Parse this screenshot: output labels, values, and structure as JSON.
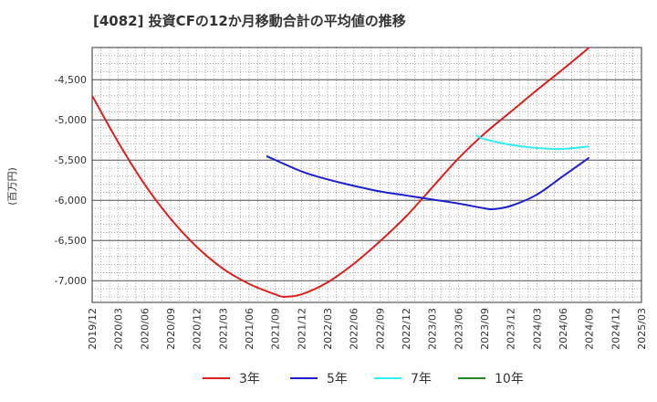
{
  "title": "[4082]  投資CFの12か月移動合計の平均値の推移",
  "chart_data": {
    "type": "line",
    "ylabel": "(百万円)",
    "ylim": [
      -7270,
      -4100
    ],
    "y_ticks": [
      -4500,
      -5000,
      -5500,
      -6000,
      -6500,
      -7000
    ],
    "y_tick_labels": [
      "-4,500",
      "-5,000",
      "-5,500",
      "-6,000",
      "-6,500",
      "-7,000"
    ],
    "x_ticks": [
      "2019/12",
      "2020/03",
      "2020/06",
      "2020/09",
      "2020/12",
      "2021/03",
      "2021/06",
      "2021/09",
      "2021/12",
      "2022/03",
      "2022/06",
      "2022/09",
      "2022/12",
      "2023/03",
      "2023/06",
      "2023/09",
      "2023/12",
      "2024/03",
      "2024/06",
      "2024/09",
      "2024/12",
      "2025/03"
    ],
    "grid": true,
    "legend_position": "bottom",
    "series": [
      {
        "name": "3年",
        "color": "#dd1f1f",
        "x": [
          "2019/12",
          "2020/03",
          "2020/06",
          "2020/09",
          "2020/12",
          "2021/03",
          "2021/06",
          "2021/09",
          "2021/10",
          "2021/12",
          "2022/03",
          "2022/06",
          "2022/09",
          "2022/12",
          "2023/03",
          "2023/06",
          "2023/09",
          "2023/12",
          "2024/03",
          "2024/06",
          "2024/09"
        ],
        "values": [
          -4700,
          -5280,
          -5800,
          -6230,
          -6580,
          -6850,
          -7040,
          -7170,
          -7200,
          -7170,
          -7020,
          -6790,
          -6510,
          -6200,
          -5840,
          -5480,
          -5170,
          -4900,
          -4630,
          -4370,
          -4100
        ]
      },
      {
        "name": "5年",
        "color": "#1f1fcc",
        "x": [
          "2021/08",
          "2021/12",
          "2022/03",
          "2022/06",
          "2022/09",
          "2022/12",
          "2023/03",
          "2023/06",
          "2023/09",
          "2023/10",
          "2023/12",
          "2024/03",
          "2024/06",
          "2024/09"
        ],
        "values": [
          -5450,
          -5640,
          -5740,
          -5820,
          -5890,
          -5940,
          -5990,
          -6040,
          -6100,
          -6110,
          -6070,
          -5930,
          -5700,
          -5470
        ]
      },
      {
        "name": "7年",
        "color": "#33eeee",
        "x": [
          "2023/08",
          "2023/09",
          "2023/12",
          "2024/03",
          "2024/06",
          "2024/09"
        ],
        "values": [
          -5190,
          -5240,
          -5310,
          -5350,
          -5360,
          -5330
        ]
      },
      {
        "name": "10年",
        "color": "#228822",
        "x": [],
        "values": []
      }
    ]
  }
}
